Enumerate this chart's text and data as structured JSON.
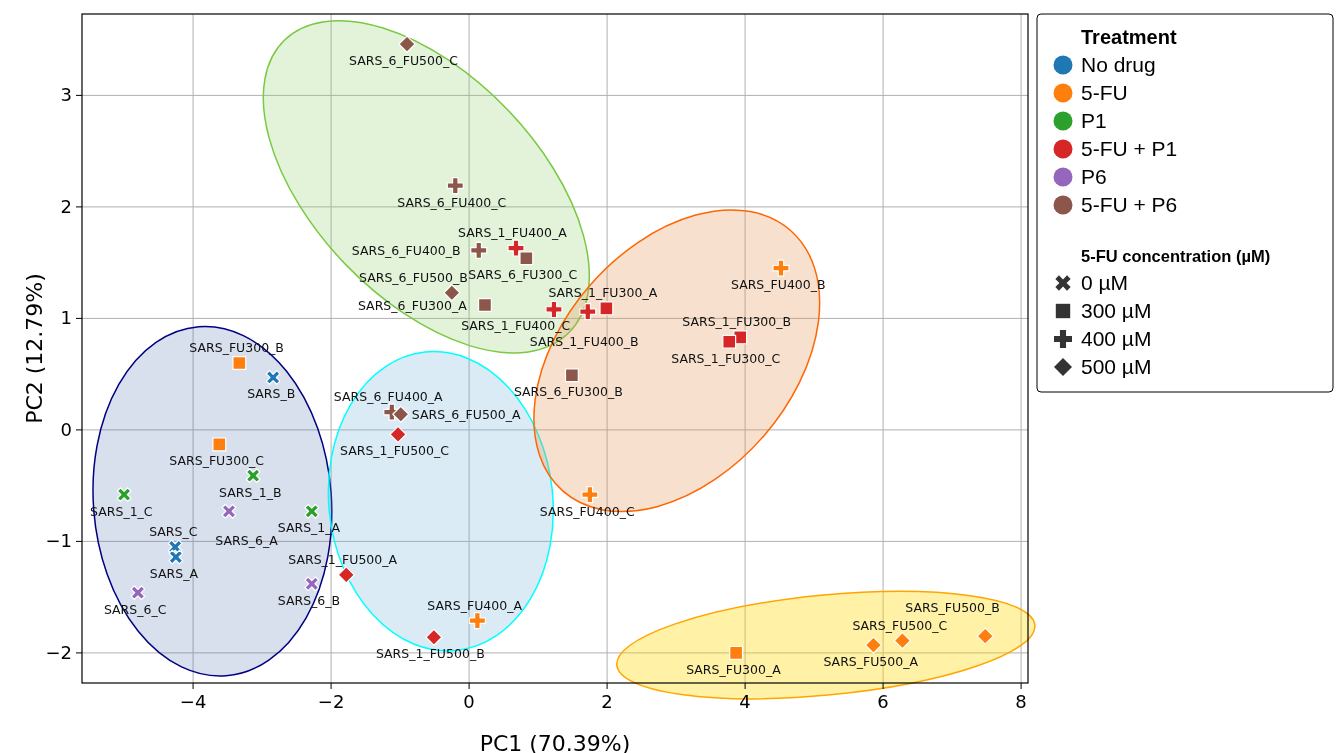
{
  "chart_data": {
    "type": "scatter",
    "xlabel": "PC1 (70.39%)",
    "ylabel": "PC2 (12.79%)",
    "legend_title": "Treatment",
    "xlim": [
      -5.61,
      8.1
    ],
    "ylim": [
      -2.27,
      3.73
    ],
    "xticks": [
      {
        "value": -4,
        "label": "−4"
      },
      {
        "value": -2,
        "label": "−2"
      },
      0,
      2,
      4,
      6,
      8
    ],
    "yticks": [
      {
        "value": -2,
        "label": "−2"
      },
      {
        "value": -1,
        "label": "−1"
      },
      0,
      1,
      2,
      3
    ],
    "grid": true,
    "legend": "right",
    "series": [
      {
        "name": "No drug",
        "color": "#1f77b4",
        "marker": "cross",
        "x": [
          -2.84,
          -4.26,
          -4.25
        ],
        "values": [
          0.47,
          -1.05,
          -1.14
        ]
      },
      {
        "name": "5-FU",
        "color": "#ff7f0e",
        "marker": "square",
        "x": [
          -3.33,
          -3.62,
          3.87
        ],
        "values": [
          0.6,
          -0.13,
          -2.0
        ]
      },
      {
        "color": "#ff7f0e",
        "marker": "plus",
        "x": [
          4.52,
          1.75,
          0.12
        ],
        "values": [
          1.45,
          -0.58,
          -1.71
        ]
      },
      {
        "color": "#ff7f0e",
        "marker": "diamond",
        "x": [
          5.86,
          6.28,
          7.48
        ],
        "values": [
          -1.93,
          -1.89,
          -1.85
        ]
      },
      {
        "name": "P1",
        "color": "#2ca02c",
        "marker": "cross",
        "x": [
          -5.0,
          -3.13,
          -2.28
        ],
        "values": [
          -0.58,
          -0.41,
          -0.73
        ]
      },
      {
        "name": "5-FU + P1",
        "color": "#d62728",
        "marker": "square",
        "x": [
          1.99,
          3.93,
          3.77
        ],
        "values": [
          1.09,
          0.83,
          0.79
        ]
      },
      {
        "color": "#d62728",
        "marker": "plus",
        "x": [
          0.68,
          1.23,
          1.72
        ],
        "values": [
          1.63,
          1.08,
          1.06
        ]
      },
      {
        "color": "#d62728",
        "marker": "diamond",
        "x": [
          -1.03,
          -1.78,
          -0.51
        ],
        "values": [
          -0.04,
          -1.3,
          -1.86
        ]
      },
      {
        "name": "P6",
        "color": "#9467bd",
        "marker": "cross",
        "x": [
          -3.48,
          -2.28,
          -4.8
        ],
        "values": [
          -0.73,
          -1.38,
          -1.46
        ]
      },
      {
        "name": "5-FU + P6",
        "color": "#8c564b",
        "marker": "square",
        "x": [
          0.83,
          0.23,
          1.49
        ],
        "values": [
          1.54,
          1.12,
          0.49
        ]
      },
      {
        "color": "#8c564b",
        "marker": "plus",
        "x": [
          -0.2,
          0.14,
          -1.12
        ],
        "values": [
          2.19,
          1.61,
          0.16
        ]
      },
      {
        "color": "#8c564b",
        "marker": "diamond",
        "x": [
          -0.9,
          -0.25,
          -0.99
        ],
        "values": [
          3.46,
          1.23,
          0.14
        ]
      }
    ],
    "annotations": [
      "5-FU concentration (µM)",
      "0 µM",
      "300 µM",
      "400 µM",
      "500 µM",
      {
        "text": "SARS_B",
        "x": -2.84,
        "y": 0.47
      },
      {
        "text": "SARS_C",
        "x": -4.26,
        "y": -1.05
      },
      {
        "text": "SARS_A",
        "x": -4.25,
        "y": -1.14
      },
      {
        "text": "SARS_FU300_B",
        "x": -3.33,
        "y": 0.6
      },
      {
        "text": "SARS_FU300_C",
        "x": -3.62,
        "y": -0.13
      },
      {
        "text": "SARS_FU300_A",
        "x": 3.87,
        "y": -2.0
      },
      {
        "text": "SARS_FU400_B",
        "x": 4.52,
        "y": 1.45
      },
      {
        "text": "SARS_FU400_C",
        "x": 1.75,
        "y": -0.58
      },
      {
        "text": "SARS_FU400_A",
        "x": 0.12,
        "y": -1.71
      },
      {
        "text": "SARS_FU500_A",
        "x": 5.86,
        "y": -1.93
      },
      {
        "text": "SARS_FU500_C",
        "x": 6.28,
        "y": -1.89
      },
      {
        "text": "SARS_FU500_B",
        "x": 7.48,
        "y": -1.85
      },
      {
        "text": "SARS_1_C",
        "x": -5.0,
        "y": -0.58
      },
      {
        "text": "SARS_1_B",
        "x": -3.13,
        "y": -0.41
      },
      {
        "text": "SARS_1_A",
        "x": -2.28,
        "y": -0.73
      },
      {
        "text": "SARS_1_FU300_A",
        "x": 1.99,
        "y": 1.09
      },
      {
        "text": "SARS_1_FU300_B",
        "x": 3.93,
        "y": 0.83
      },
      {
        "text": "SARS_1_FU300_C",
        "x": 3.77,
        "y": 0.79
      },
      {
        "text": "SARS_1_FU400_A",
        "x": 0.68,
        "y": 1.63
      },
      {
        "text": "SARS_1_FU400_C",
        "x": 1.23,
        "y": 1.08
      },
      {
        "text": "SARS_1_FU400_B",
        "x": 1.72,
        "y": 1.06
      },
      {
        "text": "SARS_1_FU500_C",
        "x": -1.03,
        "y": -0.04
      },
      {
        "text": "SARS_1_FU500_A",
        "x": -1.78,
        "y": -1.3
      },
      {
        "text": "SARS_1_FU500_B",
        "x": -0.51,
        "y": -1.86
      },
      {
        "text": "SARS_6_A",
        "x": -3.48,
        "y": -0.73
      },
      {
        "text": "SARS_6_B",
        "x": -2.28,
        "y": -1.38
      },
      {
        "text": "SARS_6_C",
        "x": -4.8,
        "y": -1.46
      },
      {
        "text": "SARS_6_FU300_C",
        "x": 0.83,
        "y": 1.54
      },
      {
        "text": "SARS_6_FU300_A",
        "x": 0.23,
        "y": 1.12
      },
      {
        "text": "SARS_6_FU300_B",
        "x": 1.49,
        "y": 0.49
      },
      {
        "text": "SARS_6_FU400_C",
        "x": -0.2,
        "y": 2.19
      },
      {
        "text": "SARS_6_FU400_B",
        "x": 0.14,
        "y": 1.61
      },
      {
        "text": "SARS_6_FU400_A",
        "x": -1.12,
        "y": 0.16
      },
      {
        "text": "SARS_6_FU500_C",
        "x": -0.9,
        "y": 3.46
      },
      {
        "text": "SARS_6_FU500_B",
        "x": -0.25,
        "y": 1.23
      },
      {
        "text": "SARS_6_FU500_A",
        "x": -0.99,
        "y": 0.14
      }
    ]
  }
}
